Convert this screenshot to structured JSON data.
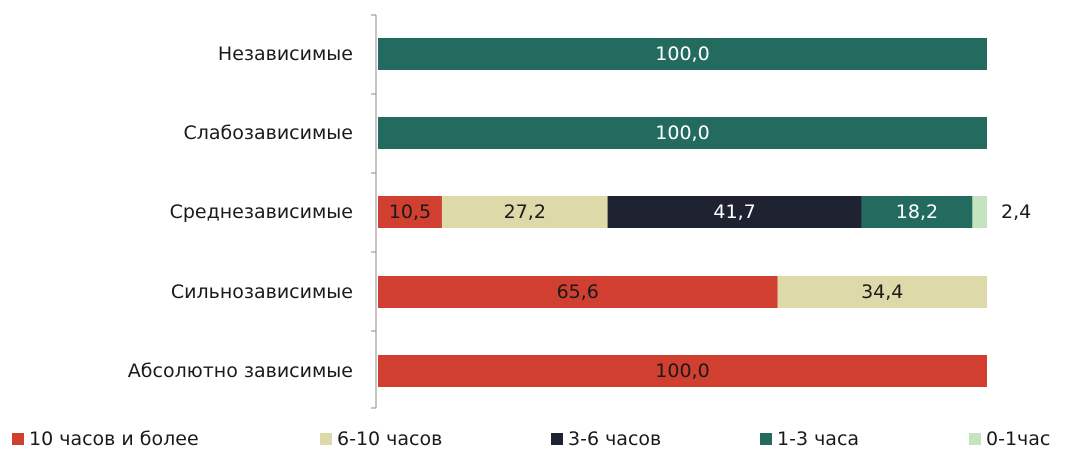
{
  "chart_data": {
    "type": "bar",
    "orientation": "horizontal",
    "stacked": true,
    "categories": [
      "Независимые",
      "Слабозависимые",
      "Среднезависимые",
      "Сильнозависимые",
      "Абсолютно зависимые"
    ],
    "series": [
      {
        "name": "10 часов и более",
        "color": "#d13f31",
        "label_color": "#1a1a1a",
        "values": [
          0,
          0,
          10.5,
          65.6,
          100.0
        ],
        "labels": [
          "",
          "",
          "10,5",
          "65,6",
          "100,0"
        ]
      },
      {
        "name": "6-10 часов",
        "color": "#ddd9a9",
        "label_color": "#1a1a1a",
        "values": [
          0,
          0,
          27.2,
          34.4,
          0
        ],
        "labels": [
          "",
          "",
          "27,2",
          "34,4",
          ""
        ]
      },
      {
        "name": "3-6 часов",
        "color": "#1f2231",
        "label_color": "#ffffff",
        "values": [
          0,
          0,
          41.7,
          0,
          0
        ],
        "labels": [
          "",
          "",
          "41,7",
          "",
          ""
        ]
      },
      {
        "name": "1-3 часа",
        "color": "#236b5f",
        "label_color": "#ffffff",
        "values": [
          100.0,
          100.0,
          18.2,
          0,
          0
        ],
        "labels": [
          "100,0",
          "100,0",
          "18,2",
          "",
          ""
        ]
      },
      {
        "name": "0-1час",
        "color": "#c4e3be",
        "label_color": "#1a1a1a",
        "values": [
          0,
          0,
          2.4,
          0,
          0
        ],
        "labels": [
          "",
          "",
          "2,4",
          "",
          ""
        ]
      }
    ],
    "xlim": [
      0,
      100
    ],
    "grid": false,
    "legend_position": "bottom"
  }
}
